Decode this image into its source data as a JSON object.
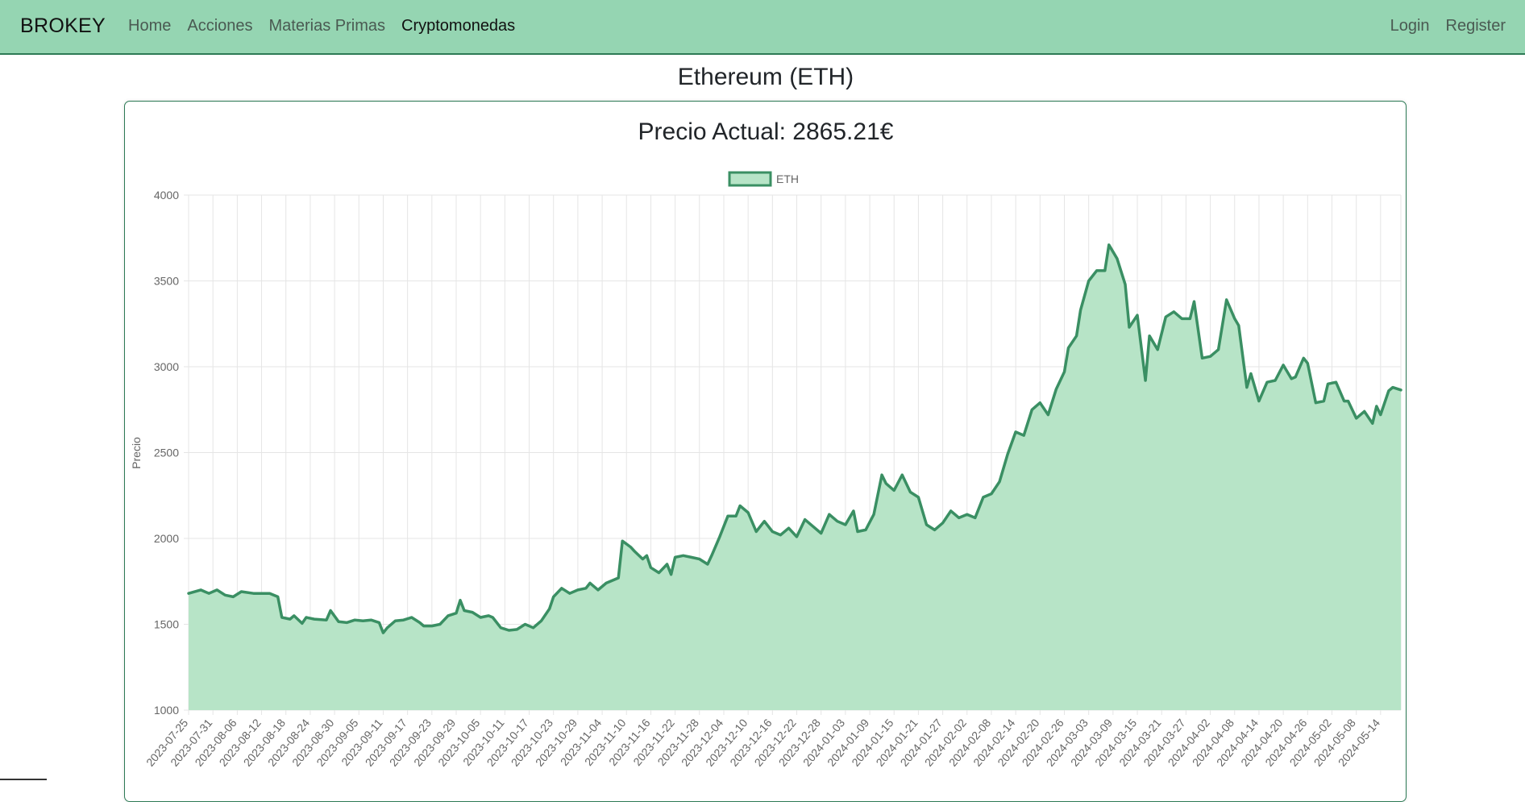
{
  "navbar": {
    "brand": "BROKEY",
    "links": [
      "Home",
      "Acciones",
      "Materias Primas",
      "Cryptomonedas"
    ],
    "active": "Cryptomonedas",
    "right_links": [
      "Login",
      "Register"
    ]
  },
  "page": {
    "title": "Ethereum (ETH)",
    "price_text": "Precio Actual: 2865.21€"
  },
  "colors": {
    "navbar_bg": "#95d5b2",
    "line": "#3a8f63",
    "fill": "#b7e4c7",
    "grid": "#e5e5e5"
  },
  "chart_data": {
    "type": "area",
    "legend": "ETH",
    "legend_position": "top",
    "ylabel": "Precio",
    "ylim": [
      1000,
      4000
    ],
    "yticks": [
      1000,
      1500,
      2000,
      2500,
      3000,
      3500,
      4000
    ],
    "grid": true,
    "x_start": "2023-07-25",
    "x_end": "2024-05-19",
    "x_tick_labels": [
      "2023-07-25",
      "2023-07-31",
      "2023-08-06",
      "2023-08-12",
      "2023-08-18",
      "2023-08-24",
      "2023-08-30",
      "2023-09-05",
      "2023-09-11",
      "2023-09-17",
      "2023-09-23",
      "2023-09-29",
      "2023-10-05",
      "2023-10-11",
      "2023-10-17",
      "2023-10-23",
      "2023-10-29",
      "2023-11-04",
      "2023-11-10",
      "2023-11-16",
      "2023-11-22",
      "2023-11-28",
      "2023-12-04",
      "2023-12-10",
      "2023-12-16",
      "2023-12-22",
      "2023-12-28",
      "2024-01-03",
      "2024-01-09",
      "2024-01-15",
      "2024-01-21",
      "2024-01-27",
      "2024-02-02",
      "2024-02-08",
      "2024-02-14",
      "2024-02-20",
      "2024-02-26",
      "2024-03-03",
      "2024-03-09",
      "2024-03-15",
      "2024-03-21",
      "2024-03-27",
      "2024-04-02",
      "2024-04-08",
      "2024-04-14",
      "2024-04-20",
      "2024-04-26",
      "2024-05-02",
      "2024-05-08",
      "2024-05-14"
    ],
    "points": [
      [
        "2023-07-25",
        1680
      ],
      [
        "2023-07-28",
        1700
      ],
      [
        "2023-07-30",
        1680
      ],
      [
        "2023-08-01",
        1700
      ],
      [
        "2023-08-03",
        1670
      ],
      [
        "2023-08-05",
        1660
      ],
      [
        "2023-08-07",
        1690
      ],
      [
        "2023-08-10",
        1680
      ],
      [
        "2023-08-14",
        1680
      ],
      [
        "2023-08-16",
        1660
      ],
      [
        "2023-08-17",
        1540
      ],
      [
        "2023-08-19",
        1530
      ],
      [
        "2023-08-20",
        1550
      ],
      [
        "2023-08-22",
        1505
      ],
      [
        "2023-08-23",
        1540
      ],
      [
        "2023-08-25",
        1530
      ],
      [
        "2023-08-28",
        1525
      ],
      [
        "2023-08-29",
        1580
      ],
      [
        "2023-08-31",
        1515
      ],
      [
        "2023-09-02",
        1510
      ],
      [
        "2023-09-04",
        1525
      ],
      [
        "2023-09-06",
        1520
      ],
      [
        "2023-09-08",
        1525
      ],
      [
        "2023-09-10",
        1510
      ],
      [
        "2023-09-11",
        1450
      ],
      [
        "2023-09-12",
        1480
      ],
      [
        "2023-09-14",
        1520
      ],
      [
        "2023-09-16",
        1525
      ],
      [
        "2023-09-18",
        1540
      ],
      [
        "2023-09-20",
        1510
      ],
      [
        "2023-09-21",
        1490
      ],
      [
        "2023-09-23",
        1490
      ],
      [
        "2023-09-25",
        1500
      ],
      [
        "2023-09-27",
        1550
      ],
      [
        "2023-09-29",
        1565
      ],
      [
        "2023-09-30",
        1640
      ],
      [
        "2023-10-01",
        1580
      ],
      [
        "2023-10-03",
        1570
      ],
      [
        "2023-10-05",
        1540
      ],
      [
        "2023-10-07",
        1550
      ],
      [
        "2023-10-08",
        1540
      ],
      [
        "2023-10-10",
        1480
      ],
      [
        "2023-10-12",
        1465
      ],
      [
        "2023-10-14",
        1470
      ],
      [
        "2023-10-16",
        1500
      ],
      [
        "2023-10-18",
        1480
      ],
      [
        "2023-10-20",
        1520
      ],
      [
        "2023-10-22",
        1590
      ],
      [
        "2023-10-23",
        1660
      ],
      [
        "2023-10-25",
        1710
      ],
      [
        "2023-10-27",
        1680
      ],
      [
        "2023-10-29",
        1700
      ],
      [
        "2023-10-31",
        1710
      ],
      [
        "2023-11-01",
        1740
      ],
      [
        "2023-11-03",
        1700
      ],
      [
        "2023-11-05",
        1740
      ],
      [
        "2023-11-07",
        1760
      ],
      [
        "2023-11-08",
        1770
      ],
      [
        "2023-11-09",
        1985
      ],
      [
        "2023-11-11",
        1950
      ],
      [
        "2023-11-12",
        1925
      ],
      [
        "2023-11-14",
        1880
      ],
      [
        "2023-11-15",
        1900
      ],
      [
        "2023-11-16",
        1830
      ],
      [
        "2023-11-18",
        1800
      ],
      [
        "2023-11-20",
        1850
      ],
      [
        "2023-11-21",
        1790
      ],
      [
        "2023-11-22",
        1890
      ],
      [
        "2023-11-24",
        1900
      ],
      [
        "2023-11-26",
        1890
      ],
      [
        "2023-11-28",
        1880
      ],
      [
        "2023-11-30",
        1850
      ],
      [
        "2023-12-01",
        1900
      ],
      [
        "2023-12-03",
        2010
      ],
      [
        "2023-12-05",
        2130
      ],
      [
        "2023-12-07",
        2130
      ],
      [
        "2023-12-08",
        2190
      ],
      [
        "2023-12-10",
        2150
      ],
      [
        "2023-12-12",
        2040
      ],
      [
        "2023-12-14",
        2100
      ],
      [
        "2023-12-16",
        2040
      ],
      [
        "2023-12-18",
        2020
      ],
      [
        "2023-12-20",
        2060
      ],
      [
        "2023-12-22",
        2010
      ],
      [
        "2023-12-24",
        2110
      ],
      [
        "2023-12-26",
        2070
      ],
      [
        "2023-12-28",
        2030
      ],
      [
        "2023-12-30",
        2140
      ],
      [
        "2024-01-01",
        2100
      ],
      [
        "2024-01-03",
        2080
      ],
      [
        "2024-01-05",
        2160
      ],
      [
        "2024-01-06",
        2040
      ],
      [
        "2024-01-08",
        2050
      ],
      [
        "2024-01-10",
        2140
      ],
      [
        "2024-01-12",
        2370
      ],
      [
        "2024-01-13",
        2320
      ],
      [
        "2024-01-15",
        2280
      ],
      [
        "2024-01-17",
        2370
      ],
      [
        "2024-01-19",
        2270
      ],
      [
        "2024-01-21",
        2240
      ],
      [
        "2024-01-23",
        2080
      ],
      [
        "2024-01-25",
        2050
      ],
      [
        "2024-01-27",
        2090
      ],
      [
        "2024-01-29",
        2160
      ],
      [
        "2024-01-31",
        2120
      ],
      [
        "2024-02-02",
        2140
      ],
      [
        "2024-02-04",
        2120
      ],
      [
        "2024-02-06",
        2240
      ],
      [
        "2024-02-08",
        2260
      ],
      [
        "2024-02-10",
        2330
      ],
      [
        "2024-02-12",
        2490
      ],
      [
        "2024-02-14",
        2620
      ],
      [
        "2024-02-16",
        2600
      ],
      [
        "2024-02-18",
        2750
      ],
      [
        "2024-02-20",
        2790
      ],
      [
        "2024-02-22",
        2720
      ],
      [
        "2024-02-24",
        2870
      ],
      [
        "2024-02-26",
        2970
      ],
      [
        "2024-02-27",
        3110
      ],
      [
        "2024-02-29",
        3180
      ],
      [
        "2024-03-01",
        3330
      ],
      [
        "2024-03-03",
        3500
      ],
      [
        "2024-03-05",
        3560
      ],
      [
        "2024-03-07",
        3560
      ],
      [
        "2024-03-08",
        3710
      ],
      [
        "2024-03-10",
        3630
      ],
      [
        "2024-03-12",
        3480
      ],
      [
        "2024-03-13",
        3230
      ],
      [
        "2024-03-15",
        3300
      ],
      [
        "2024-03-17",
        2920
      ],
      [
        "2024-03-18",
        3180
      ],
      [
        "2024-03-20",
        3100
      ],
      [
        "2024-03-22",
        3290
      ],
      [
        "2024-03-24",
        3320
      ],
      [
        "2024-03-26",
        3280
      ],
      [
        "2024-03-28",
        3280
      ],
      [
        "2024-03-29",
        3380
      ],
      [
        "2024-03-31",
        3050
      ],
      [
        "2024-04-02",
        3060
      ],
      [
        "2024-04-04",
        3100
      ],
      [
        "2024-04-06",
        3390
      ],
      [
        "2024-04-08",
        3280
      ],
      [
        "2024-04-09",
        3240
      ],
      [
        "2024-04-11",
        2880
      ],
      [
        "2024-04-12",
        2960
      ],
      [
        "2024-04-14",
        2800
      ],
      [
        "2024-04-16",
        2910
      ],
      [
        "2024-04-18",
        2920
      ],
      [
        "2024-04-20",
        3010
      ],
      [
        "2024-04-22",
        2930
      ],
      [
        "2024-04-23",
        2940
      ],
      [
        "2024-04-25",
        3050
      ],
      [
        "2024-04-26",
        3020
      ],
      [
        "2024-04-28",
        2790
      ],
      [
        "2024-04-30",
        2800
      ],
      [
        "2024-05-01",
        2900
      ],
      [
        "2024-05-03",
        2910
      ],
      [
        "2024-05-05",
        2800
      ],
      [
        "2024-05-06",
        2800
      ],
      [
        "2024-05-08",
        2700
      ],
      [
        "2024-05-10",
        2740
      ],
      [
        "2024-05-12",
        2670
      ],
      [
        "2024-05-13",
        2770
      ],
      [
        "2024-05-14",
        2720
      ],
      [
        "2024-05-16",
        2860
      ],
      [
        "2024-05-17",
        2880
      ],
      [
        "2024-05-19",
        2865
      ]
    ]
  }
}
